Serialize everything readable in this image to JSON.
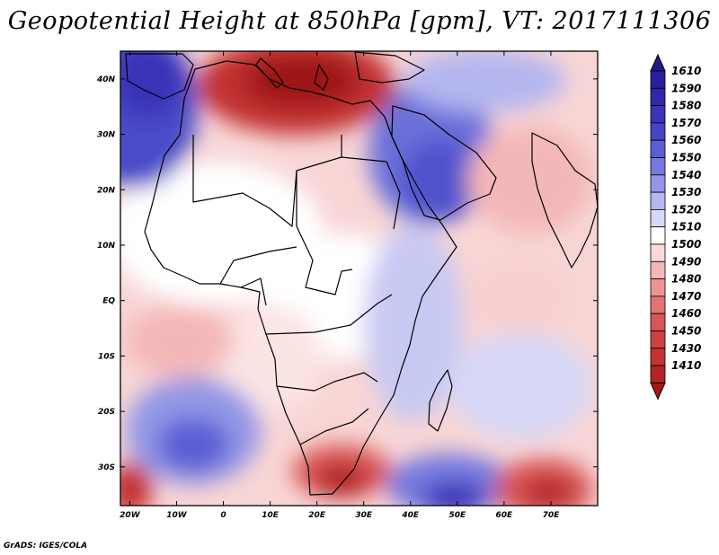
{
  "title": "Geopotential Height at 850hPa [gpm], VT: 2017111306",
  "credit": "GrADS: IGES/COLA",
  "map": {
    "lon_range": [
      -22,
      80
    ],
    "lat_range": [
      -37,
      45
    ],
    "lat_ticks": [
      {
        "value": 40,
        "label": "40N"
      },
      {
        "value": 30,
        "label": "30N"
      },
      {
        "value": 20,
        "label": "20N"
      },
      {
        "value": 10,
        "label": "10N"
      },
      {
        "value": 0,
        "label": "EQ"
      },
      {
        "value": -10,
        "label": "10S"
      },
      {
        "value": -20,
        "label": "20S"
      },
      {
        "value": -30,
        "label": "30S"
      }
    ],
    "lon_ticks": [
      {
        "value": -20,
        "label": "20W"
      },
      {
        "value": -10,
        "label": "10W"
      },
      {
        "value": 0,
        "label": "0"
      },
      {
        "value": 10,
        "label": "10E"
      },
      {
        "value": 20,
        "label": "20E"
      },
      {
        "value": 30,
        "label": "30E"
      },
      {
        "value": 40,
        "label": "40E"
      },
      {
        "value": 50,
        "label": "50E"
      },
      {
        "value": 60,
        "label": "60E"
      },
      {
        "value": 70,
        "label": "70E"
      }
    ],
    "field_features": [
      {
        "name": "mediterranean-low",
        "lon": 20,
        "lat": 38,
        "level": 1430
      },
      {
        "name": "atlantic-high",
        "lon": -18,
        "lat": 42,
        "level": 1570
      },
      {
        "name": "arabia-high",
        "lon": 45,
        "lat": 24,
        "level": 1560
      },
      {
        "name": "south-atlantic-high",
        "lon": -12,
        "lat": -26,
        "level": 1550
      },
      {
        "name": "south-indian-high",
        "lon": 48,
        "lat": -35,
        "level": 1560
      },
      {
        "name": "south-africa-low",
        "lon": 25,
        "lat": -33,
        "level": 1450
      },
      {
        "name": "south-east-low",
        "lon": 72,
        "lat": -34,
        "level": 1450
      }
    ]
  },
  "colorbar": {
    "levels": [
      {
        "label": "1610",
        "color": "#2a1f9e"
      },
      {
        "label": "1590",
        "color": "#3127a8"
      },
      {
        "label": "1580",
        "color": "#3a33b8"
      },
      {
        "label": "1570",
        "color": "#4545c6"
      },
      {
        "label": "1560",
        "color": "#5a5fd3"
      },
      {
        "label": "1550",
        "color": "#7579de"
      },
      {
        "label": "1540",
        "color": "#9396e6"
      },
      {
        "label": "1530",
        "color": "#b4b6ef"
      },
      {
        "label": "1520",
        "color": "#d7d8f7"
      },
      {
        "label": "1510",
        "color": "#ffffff"
      },
      {
        "label": "1500",
        "color": "#fadada"
      },
      {
        "label": "1490",
        "color": "#f4b7b7"
      },
      {
        "label": "1480",
        "color": "#ec9494"
      },
      {
        "label": "1470",
        "color": "#e27373"
      },
      {
        "label": "1460",
        "color": "#d85656"
      },
      {
        "label": "1450",
        "color": "#cf4141"
      },
      {
        "label": "1430",
        "color": "#c43333"
      },
      {
        "label": "1410",
        "color": "#b42424"
      }
    ],
    "low_end_color": "#a41818",
    "high_end_color": "#24198c"
  }
}
